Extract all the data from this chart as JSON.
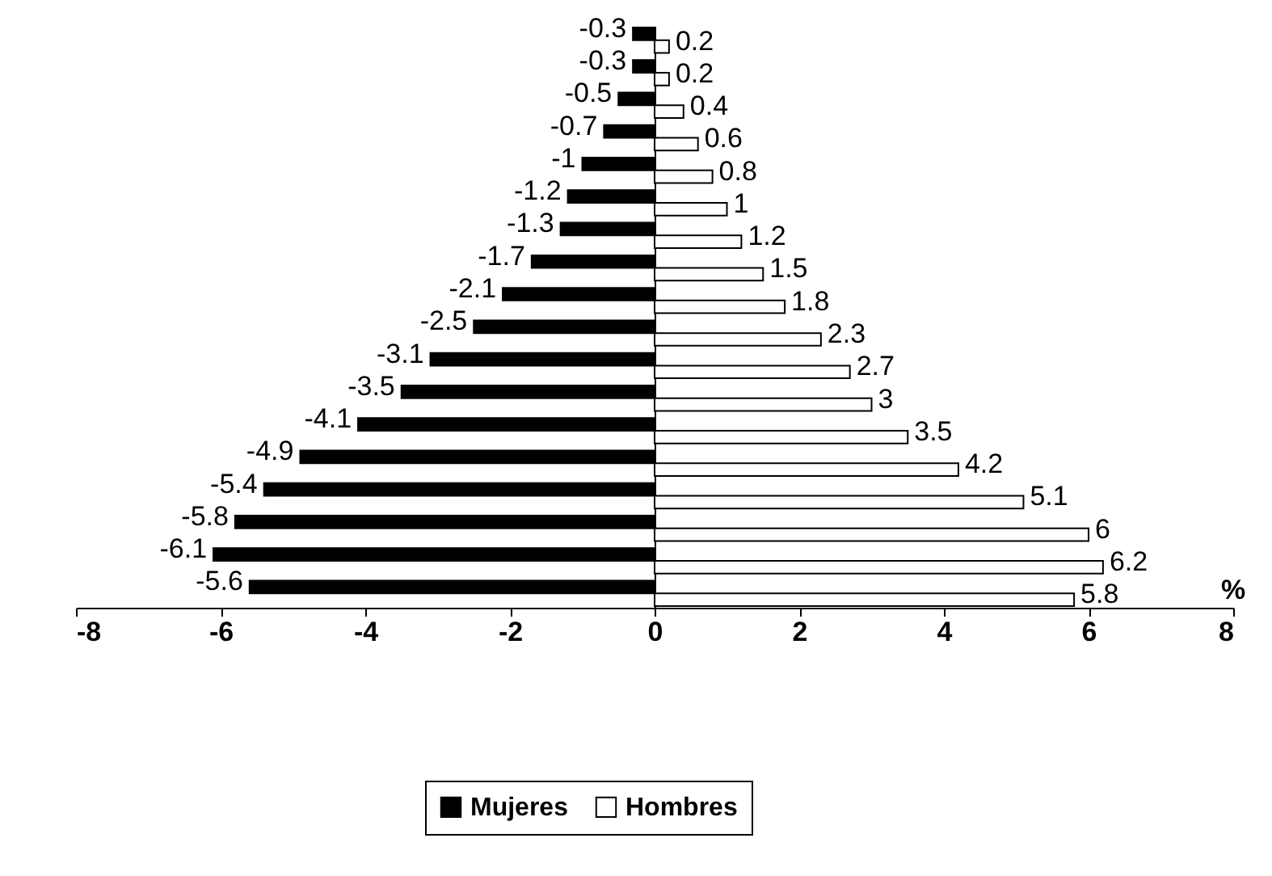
{
  "chart_data": {
    "type": "bar",
    "orientation": "horizontal",
    "xlabel": "%",
    "categories": [
      null,
      null,
      null,
      null,
      null,
      null,
      null,
      null,
      null,
      null,
      null,
      null,
      null,
      null,
      null,
      null,
      null,
      null
    ],
    "series": [
      {
        "name": "Mujeres",
        "color": "#000000",
        "values": [
          -0.3,
          -0.3,
          -0.5,
          -0.7,
          -1,
          -1.2,
          -1.3,
          -1.7,
          -2.1,
          -2.5,
          -3.1,
          -3.5,
          -4.1,
          -4.9,
          -5.4,
          -5.8,
          -6.1,
          -5.6
        ]
      },
      {
        "name": "Hombres",
        "color": "#ffffff",
        "values": [
          0.2,
          0.2,
          0.4,
          0.6,
          0.8,
          1,
          1.2,
          1.5,
          1.8,
          2.3,
          2.7,
          3,
          3.5,
          4.2,
          5.1,
          6,
          6.2,
          5.8
        ]
      }
    ],
    "xlim": [
      -8,
      8
    ],
    "xticks": [
      -8,
      -6,
      -4,
      -2,
      0,
      2,
      4,
      6,
      8
    ],
    "data_labels": true,
    "legend": "bottom",
    "tick_labels": "x"
  }
}
